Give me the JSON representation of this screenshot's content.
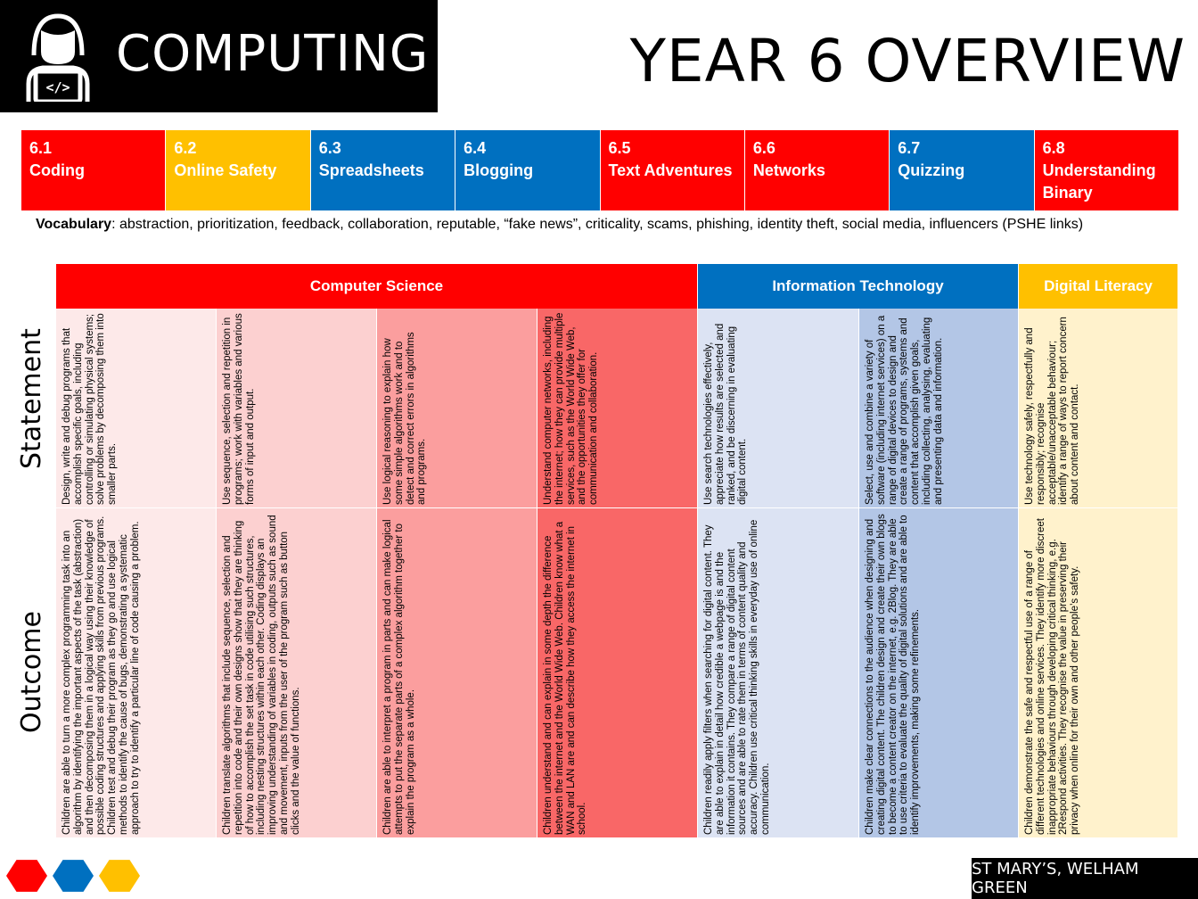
{
  "header": {
    "subject": "COMPUTING",
    "title": "YEAR 6 OVERVIEW",
    "icon": "coder-laptop-icon",
    "laptop_glyph": "</>"
  },
  "units": [
    {
      "number": "6.1",
      "name": "Coding",
      "color": "#ff0000"
    },
    {
      "number": "6.2",
      "name": "Online Safety",
      "color": "#ffc000"
    },
    {
      "number": "6.3",
      "name": "Spreadsheets",
      "color": "#0070c0"
    },
    {
      "number": "6.4",
      "name": "Blogging",
      "color": "#0070c0"
    },
    {
      "number": "6.5",
      "name": "Text Adventures",
      "color": "#ff0000"
    },
    {
      "number": "6.6",
      "name": "Networks",
      "color": "#ff0000"
    },
    {
      "number": "6.7",
      "name": "Quizzing",
      "color": "#0070c0"
    },
    {
      "number": "6.8",
      "name": "Understanding Binary",
      "color": "#ff0000"
    }
  ],
  "vocabulary": {
    "label": "Vocabulary",
    "text": ": abstraction, prioritization, feedback, collaboration, reputable, “fake news”, criticality, scams, phishing, identity theft, social media, influencers (PSHE links)"
  },
  "row_labels": {
    "statement": "Statement",
    "outcome": "Outcome"
  },
  "categories": [
    {
      "label": "Computer Science",
      "color": "#ff0000"
    },
    {
      "label": "Information Technology",
      "color": "#0070c0"
    },
    {
      "label": "Digital Literacy",
      "color": "#ffc000"
    }
  ],
  "columns": [
    {
      "bg": "#fde9e9",
      "statement": "Design, write and debug programs that accomplish specific goals, including controlling or simulating physical systems; solve problems by decomposing them into smaller parts.",
      "outcome": "Children are able to turn a more complex programming task into an algorithm by identifying the important aspects of the task (abstraction) and then decomposing them in a logical way using their knowledge of possible coding structures and applying skills from previous programs. Children test and debug their program as they go and use logical methods to identify the cause of bugs, demonstrating a systematic approach to try to identify a particular line of code causing a problem."
    },
    {
      "bg": "#fcd0d0",
      "statement": "Use sequence, selection and repetition in programs; work with variables and various forms of input and output.",
      "outcome": "Children translate algorithms that include sequence, selection and repetition into code and their own designs show that they are thinking of how to accomplish the set task in code utilising such structures, including nesting structures within each other. Coding displays an improving understanding of variables in coding, outputs such as sound and movement, inputs from the user of the program such as button clicks and the value of functions."
    },
    {
      "bg": "#fb9e9e",
      "statement": "Use logical reasoning to explain how some simple algorithms work and to detect and correct errors in algorithms and programs.",
      "outcome": "Children are able to interpret a program in parts and can make logical attempts to put the separate parts of a complex algorithm together to explain the program as a whole."
    },
    {
      "bg": "#f96767",
      "statement": "Understand computer networks, including the internet; how they can provide multiple services, such as the World Wide Web, and the opportunities they offer for communication and collaboration.",
      "outcome": "Children understand and can explain in some depth the difference between the internet and the World Wide Web. Children know what a WAN and LAN are and can describe how they access the internet in school."
    },
    {
      "bg": "#dce3f3",
      "statement": "Use search technologies effectively, appreciate how results are selected and ranked, and be discerning in evaluating digital content.",
      "outcome": "Children readily apply filters when searching for digital content. They are able to explain in detail how credible a webpage is and the information it contains. They compare a range of digital content sources and are able to rate them in terms of content quality and accuracy. Children use critical thinking skills in everyday use of online communication."
    },
    {
      "bg": "#b3c6e6",
      "statement": "Select, use and combine a variety of software (including internet services) on a range of digital devices to design and create a range of programs, systems and content that accomplish given goals, including collecting, analysing, evaluating and presenting data and information.",
      "outcome": "Children make clear connections to the audience when designing and creating digital content. The children design and create their own blogs to become a content creator on the internet, e.g. 2Blog. They are able to use criteria to evaluate the quality of digital solutions and are able to identify improvements, making some refinements."
    },
    {
      "bg": "#fff2cc",
      "statement": "Use technology safely, respectfully and responsibly; recognise acceptable/unacceptable behaviour; identify a range of ways to report concern about content and contact.",
      "outcome": "Children demonstrate the safe and respectful use of a range of different technologies and online services. They identify more discreet inappropriate behaviours through developing critical thinking, e.g. 2Respond activities. They recognise the value in preserving their privacy when online for their own and other people’s safety."
    }
  ],
  "footer": {
    "school": "ST MARY’S, WELHAM GREEN",
    "hexagon_colors": [
      "#ff0000",
      "#0070c0",
      "#ffc000"
    ]
  }
}
